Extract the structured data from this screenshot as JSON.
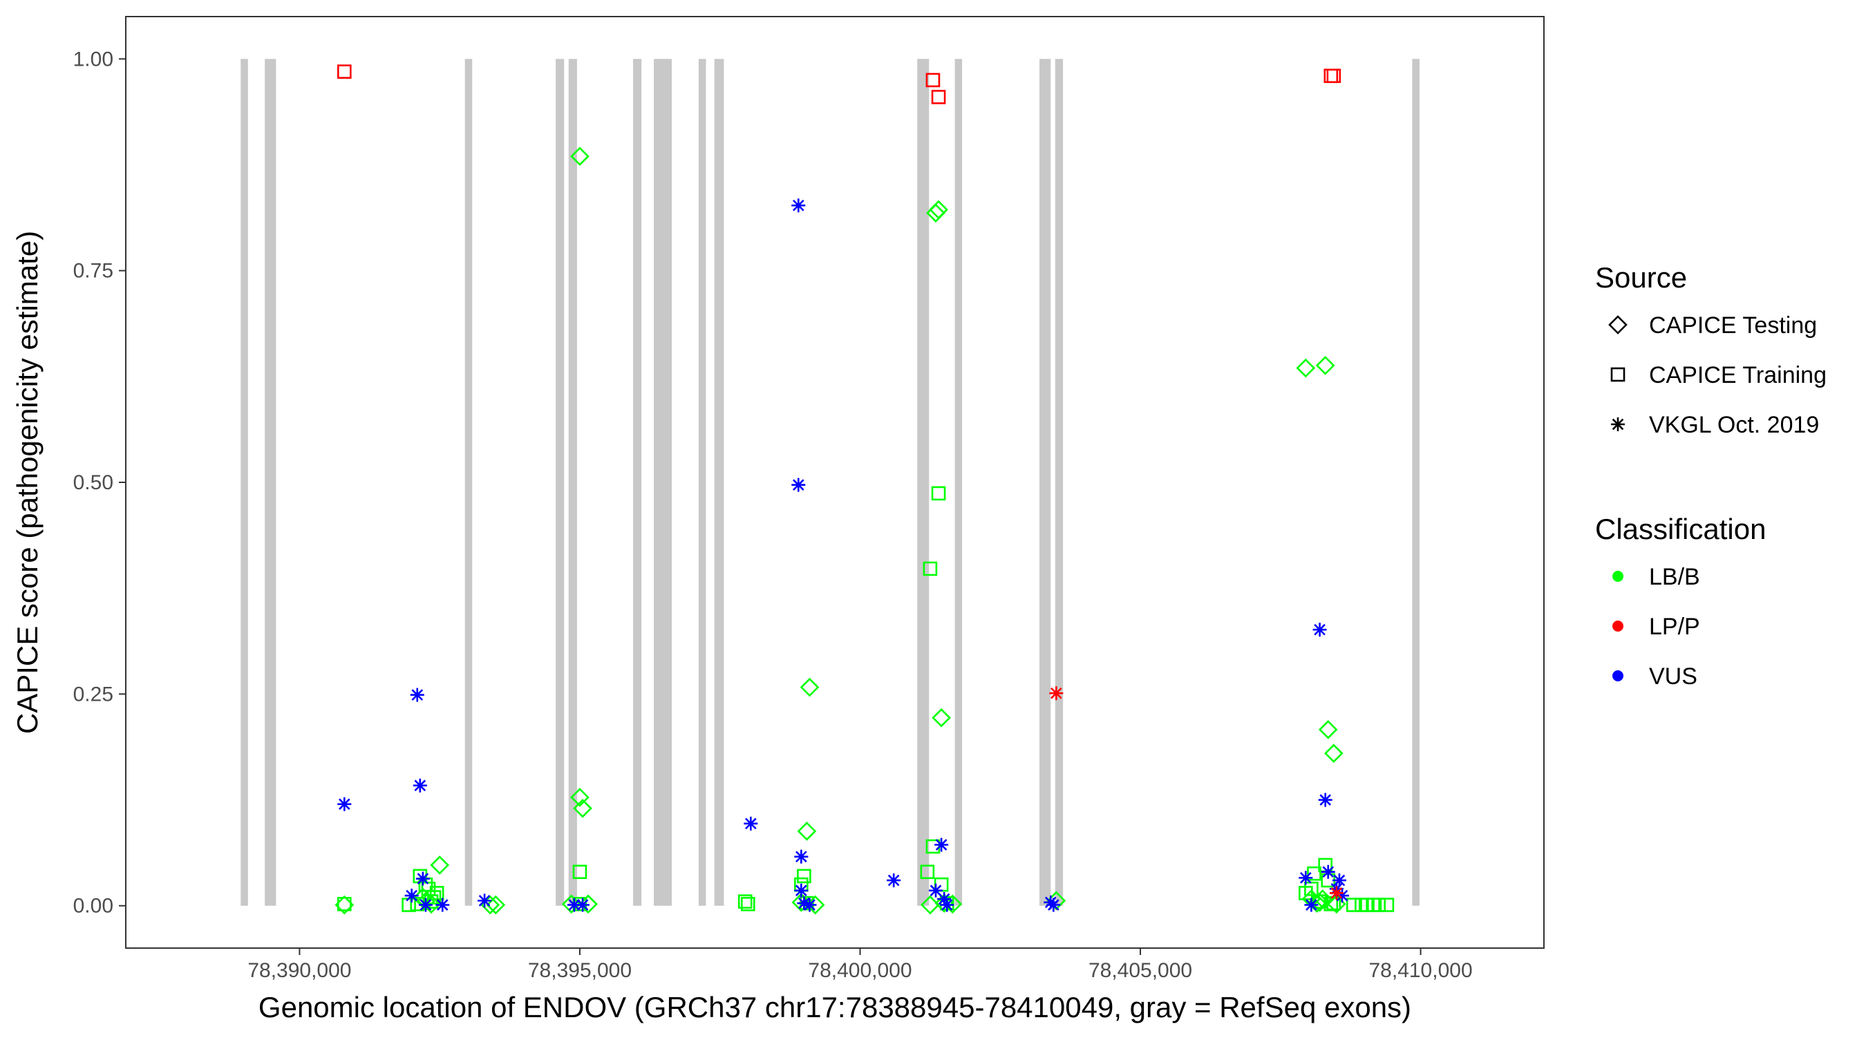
{
  "chart_data": {
    "type": "scatter",
    "title": "",
    "xlabel": "Genomic location of ENDOV (GRCh37 chr17:78388945-78410049, gray = RefSeq exons)",
    "ylabel": "CAPICE score (pathogenicity estimate)",
    "xlim": [
      78386900,
      78412200
    ],
    "ylim": [
      -0.05,
      1.05
    ],
    "x_ticks": [
      78390000,
      78395000,
      78400000,
      78405000,
      78410000
    ],
    "x_tick_labels": [
      "78,390,000",
      "78,395,000",
      "78,400,000",
      "78,405,000",
      "78,410,000"
    ],
    "y_ticks": [
      0,
      0.25,
      0.5,
      0.75,
      1.0
    ],
    "y_tick_labels": [
      "0.00",
      "0.25",
      "0.50",
      "0.75",
      "1.00"
    ],
    "grid": false,
    "legend_position": "right",
    "exon_color": "#c8c8c8",
    "exons": [
      [
        78388950,
        78389080
      ],
      [
        78389380,
        78389580
      ],
      [
        78392950,
        78393080
      ],
      [
        78394570,
        78394720
      ],
      [
        78394800,
        78394950
      ],
      [
        78395950,
        78396100
      ],
      [
        78396320,
        78396640
      ],
      [
        78397120,
        78397250
      ],
      [
        78397400,
        78397570
      ],
      [
        78401020,
        78401230
      ],
      [
        78401690,
        78401820
      ],
      [
        78403200,
        78403400
      ],
      [
        78403480,
        78403620
      ],
      [
        78409850,
        78409980
      ]
    ],
    "legends": {
      "source": {
        "title": "Source",
        "items": [
          {
            "label": "CAPICE Testing",
            "shape": "diamond"
          },
          {
            "label": "CAPICE Training",
            "shape": "square"
          },
          {
            "label": "VKGL Oct. 2019",
            "shape": "asterisk"
          }
        ]
      },
      "classification": {
        "title": "Classification",
        "items": [
          {
            "label": "LB/B",
            "color": "#00ff00"
          },
          {
            "label": "LP/P",
            "color": "#ff0000"
          },
          {
            "label": "VUS",
            "color": "#0000ff"
          }
        ]
      }
    },
    "class_colors": {
      "LB/B": "#00ff00",
      "LP/P": "#ff0000",
      "VUS": "#0000ff"
    },
    "series": [
      {
        "source": "CAPICE Training",
        "class": "LP/P",
        "points": [
          [
            78390800,
            0.985
          ],
          [
            78401300,
            0.975
          ],
          [
            78401400,
            0.955
          ],
          [
            78408400,
            0.98
          ],
          [
            78408450,
            0.98
          ]
        ]
      },
      {
        "source": "CAPICE Training",
        "class": "LB/B",
        "points": [
          [
            78390800,
            0.002
          ],
          [
            78391950,
            0.001
          ],
          [
            78392100,
            0.002
          ],
          [
            78392150,
            0.035
          ],
          [
            78392250,
            0.025
          ],
          [
            78392300,
            0.02
          ],
          [
            78392350,
            0.005
          ],
          [
            78392400,
            0.01
          ],
          [
            78392450,
            0.015
          ],
          [
            78395000,
            0.04
          ],
          [
            78395000,
            0.002
          ],
          [
            78397950,
            0.005
          ],
          [
            78398000,
            0.002
          ],
          [
            78398950,
            0.025
          ],
          [
            78399000,
            0.035
          ],
          [
            78399050,
            0.003
          ],
          [
            78401200,
            0.04
          ],
          [
            78401250,
            0.398
          ],
          [
            78401300,
            0.07
          ],
          [
            78401400,
            0.487
          ],
          [
            78401450,
            0.025
          ],
          [
            78401550,
            0.003
          ],
          [
            78407950,
            0.015
          ],
          [
            78408050,
            0.02
          ],
          [
            78408100,
            0.038
          ],
          [
            78408200,
            0.005
          ],
          [
            78408300,
            0.048
          ],
          [
            78408350,
            0.03
          ],
          [
            78408400,
            0.002
          ],
          [
            78408450,
            0.003
          ],
          [
            78408800,
            0.001
          ],
          [
            78408950,
            0.001
          ],
          [
            78409050,
            0.001
          ],
          [
            78409150,
            0.001
          ],
          [
            78409250,
            0.001
          ],
          [
            78409400,
            0.001
          ]
        ]
      },
      {
        "source": "CAPICE Testing",
        "class": "LB/B",
        "points": [
          [
            78390800,
            0.001
          ],
          [
            78392200,
            0.01
          ],
          [
            78392250,
            0.005
          ],
          [
            78392350,
            0.002
          ],
          [
            78392500,
            0.048
          ],
          [
            78393400,
            0.001
          ],
          [
            78393500,
            0.001
          ],
          [
            78394850,
            0.002
          ],
          [
            78395000,
            0.885
          ],
          [
            78395000,
            0.128
          ],
          [
            78395050,
            0.115
          ],
          [
            78395150,
            0.002
          ],
          [
            78398950,
            0.004
          ],
          [
            78399050,
            0.088
          ],
          [
            78399100,
            0.258
          ],
          [
            78399200,
            0.001
          ],
          [
            78401250,
            0.001
          ],
          [
            78401350,
            0.818
          ],
          [
            78401400,
            0.822
          ],
          [
            78401450,
            0.222
          ],
          [
            78401500,
            0.003
          ],
          [
            78401650,
            0.002
          ],
          [
            78403500,
            0.006
          ],
          [
            78407950,
            0.635
          ],
          [
            78408050,
            0.008
          ],
          [
            78408150,
            0.003
          ],
          [
            78408300,
            0.638
          ],
          [
            78408350,
            0.208
          ],
          [
            78408450,
            0.18
          ],
          [
            78408500,
            0.002
          ],
          [
            78408250,
            0.008
          ],
          [
            78408200,
            0.004
          ]
        ]
      },
      {
        "source": "VKGL Oct. 2019",
        "class": "VUS",
        "points": [
          [
            78390800,
            0.12
          ],
          [
            78392000,
            0.012
          ],
          [
            78392100,
            0.249
          ],
          [
            78392150,
            0.142
          ],
          [
            78392200,
            0.032
          ],
          [
            78392250,
            0.001
          ],
          [
            78392550,
            0.001
          ],
          [
            78393300,
            0.006
          ],
          [
            78394900,
            0.001
          ],
          [
            78395050,
            0.001
          ],
          [
            78398050,
            0.097
          ],
          [
            78398900,
            0.827
          ],
          [
            78398900,
            0.497
          ],
          [
            78398950,
            0.058
          ],
          [
            78398950,
            0.018
          ],
          [
            78399000,
            0.003
          ],
          [
            78399100,
            0.001
          ],
          [
            78400600,
            0.03
          ],
          [
            78401350,
            0.018
          ],
          [
            78401450,
            0.072
          ],
          [
            78401500,
            0.008
          ],
          [
            78401550,
            0.001
          ],
          [
            78403400,
            0.004
          ],
          [
            78403450,
            0.001
          ],
          [
            78407950,
            0.033
          ],
          [
            78408050,
            0.001
          ],
          [
            78408200,
            0.326
          ],
          [
            78408300,
            0.125
          ],
          [
            78408350,
            0.04
          ],
          [
            78408500,
            0.02
          ],
          [
            78408550,
            0.03
          ],
          [
            78408600,
            0.012
          ]
        ]
      },
      {
        "source": "VKGL Oct. 2019",
        "class": "LP/P",
        "points": [
          [
            78403500,
            0.251
          ],
          [
            78408500,
            0.015
          ]
        ]
      }
    ]
  }
}
